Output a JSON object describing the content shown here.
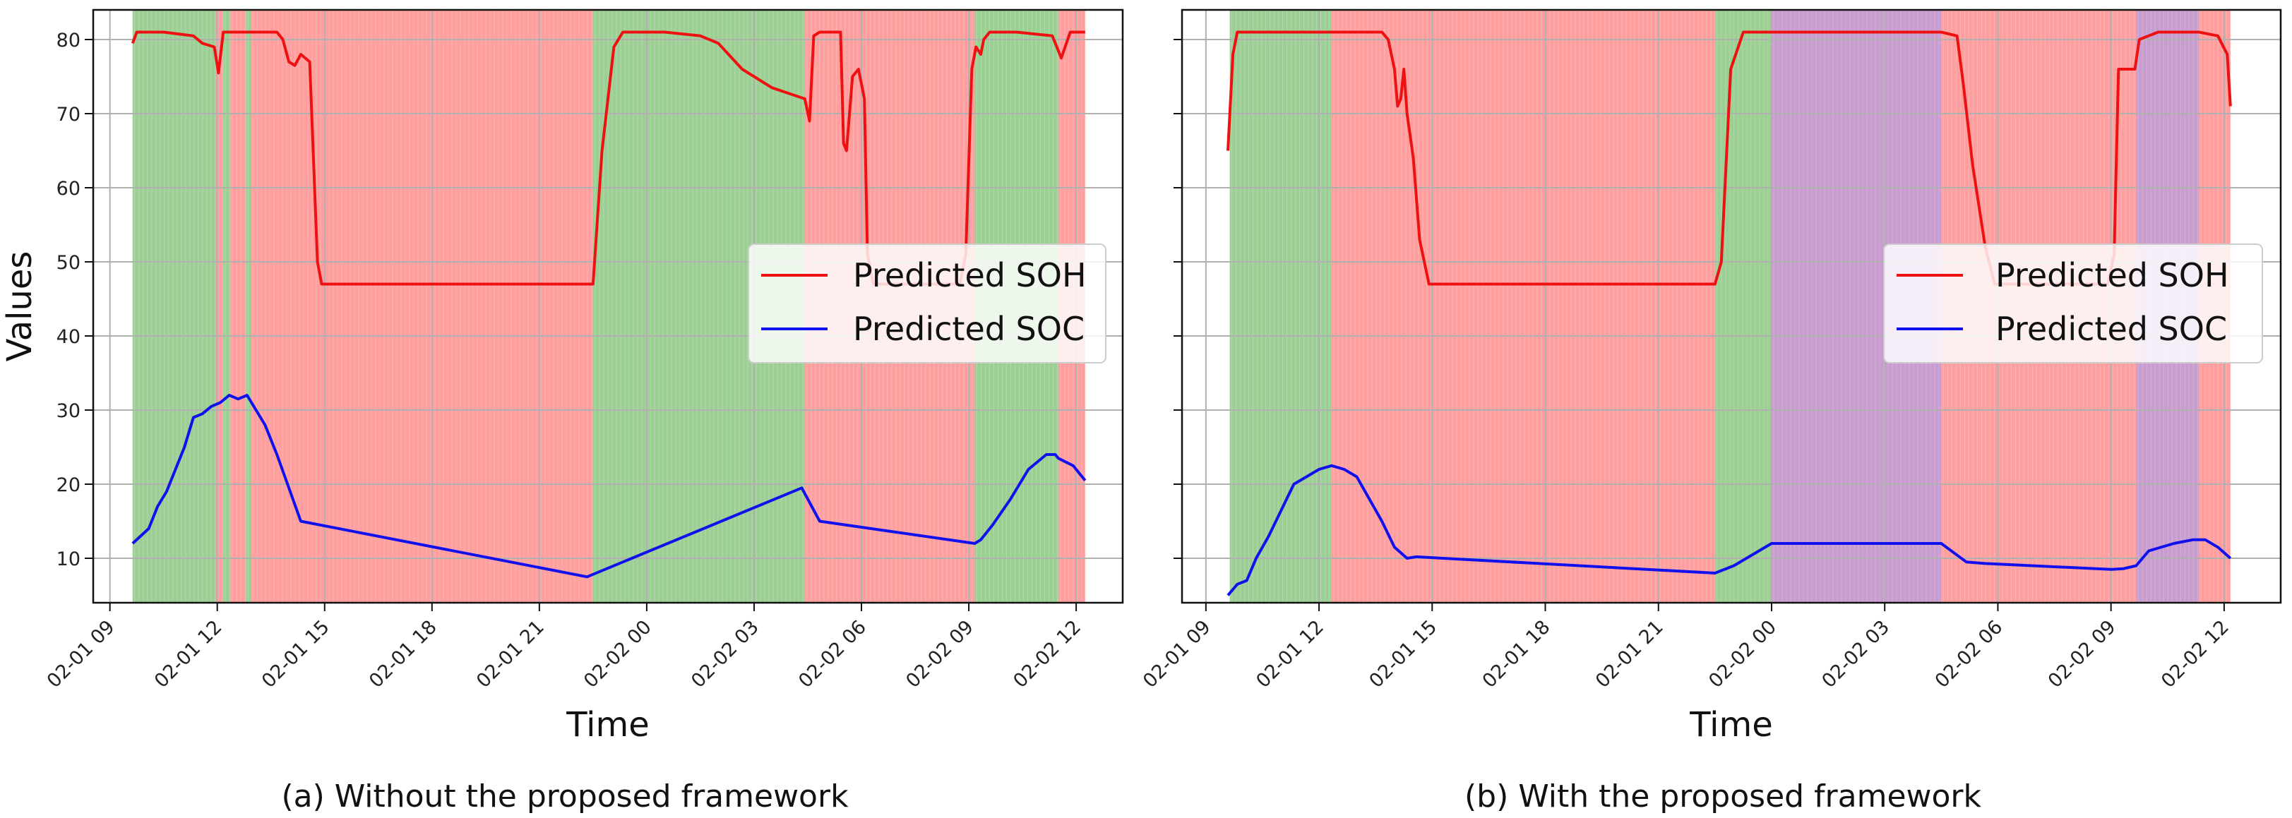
{
  "figure": {
    "captions": [
      "(a) Without the proposed framework",
      "(b) With the proposed framework"
    ]
  },
  "region_colors": {
    "green": "#9ccf93",
    "red": "#ff9e9e",
    "purple": "#c99ccf"
  },
  "chart_data": [
    {
      "type": "line",
      "title": "",
      "xlabel": "Time",
      "ylabel": "Values",
      "xlim": [
        "2023-02-01 08:32",
        "2023-02-02 13:18"
      ],
      "ylim": [
        4,
        84
      ],
      "yticks": [
        10,
        20,
        30,
        40,
        50,
        60,
        70,
        80
      ],
      "xticks": [
        "2023-02-01 09:00",
        "2023-02-01 12:00",
        "2023-02-01 15:00",
        "2023-02-01 18:00",
        "2023-02-01 21:00",
        "2023-02-02 00:00",
        "2023-02-02 03:00",
        "2023-02-02 06:00",
        "2023-02-02 09:00",
        "2023-02-02 12:00"
      ],
      "xtick_labels": [
        "02-01 09",
        "02-01 12",
        "02-01 15",
        "02-01 18",
        "02-01 21",
        "02-02 00",
        "02-02 03",
        "02-02 06",
        "02-02 09",
        "02-02 12"
      ],
      "grid": true,
      "legend_position": "center-right",
      "background_regions": [
        {
          "start": "2023-02-01 09:38",
          "end": "2023-02-01 11:58",
          "color": "green"
        },
        {
          "start": "2023-02-01 11:58",
          "end": "2023-02-01 12:10",
          "color": "red"
        },
        {
          "start": "2023-02-01 12:10",
          "end": "2023-02-01 12:22",
          "color": "green"
        },
        {
          "start": "2023-02-01 12:22",
          "end": "2023-02-01 12:48",
          "color": "red"
        },
        {
          "start": "2023-02-01 12:48",
          "end": "2023-02-01 12:56",
          "color": "green"
        },
        {
          "start": "2023-02-01 12:56",
          "end": "2023-02-01 22:30",
          "color": "red"
        },
        {
          "start": "2023-02-01 22:30",
          "end": "2023-02-02 04:25",
          "color": "green"
        },
        {
          "start": "2023-02-02 04:25",
          "end": "2023-02-02 09:10",
          "color": "red"
        },
        {
          "start": "2023-02-02 09:10",
          "end": "2023-02-02 11:30",
          "color": "green"
        },
        {
          "start": "2023-02-02 11:30",
          "end": "2023-02-02 12:15",
          "color": "red"
        }
      ],
      "series": [
        {
          "name": "Predicted SOH",
          "color": "#ee1111",
          "x": [
            "2023-02-01 09:38",
            "2023-02-01 09:45",
            "2023-02-01 10:30",
            "2023-02-01 11:20",
            "2023-02-01 11:35",
            "2023-02-01 11:55",
            "2023-02-01 12:02",
            "2023-02-01 12:10",
            "2023-02-01 12:20",
            "2023-02-01 13:40",
            "2023-02-01 13:50",
            "2023-02-01 14:00",
            "2023-02-01 14:10",
            "2023-02-01 14:20",
            "2023-02-01 14:35",
            "2023-02-01 14:48",
            "2023-02-01 14:55",
            "2023-02-01 15:03",
            "2023-02-01 15:12",
            "2023-02-01 22:20",
            "2023-02-01 22:30",
            "2023-02-01 22:45",
            "2023-02-01 23:05",
            "2023-02-01 23:20",
            "2023-02-02 00:30",
            "2023-02-02 01:30",
            "2023-02-02 02:00",
            "2023-02-02 02:40",
            "2023-02-02 03:30",
            "2023-02-02 04:25",
            "2023-02-02 04:33",
            "2023-02-02 04:40",
            "2023-02-02 04:50",
            "2023-02-02 05:25",
            "2023-02-02 05:30",
            "2023-02-02 05:35",
            "2023-02-02 05:45",
            "2023-02-02 05:55",
            "2023-02-02 06:05",
            "2023-02-02 06:10",
            "2023-02-02 06:20",
            "2023-02-02 08:45",
            "2023-02-02 08:55",
            "2023-02-02 09:05",
            "2023-02-02 09:12",
            "2023-02-02 09:20",
            "2023-02-02 09:25",
            "2023-02-02 09:35",
            "2023-02-02 09:50",
            "2023-02-02 10:20",
            "2023-02-02 11:20",
            "2023-02-02 11:35",
            "2023-02-02 11:50",
            "2023-02-02 12:15"
          ],
          "y": [
            79.5,
            81,
            81,
            80.5,
            79.5,
            79,
            75.5,
            81,
            81,
            81,
            80,
            77,
            76.5,
            78,
            77,
            50,
            47,
            47,
            47,
            47,
            47,
            65,
            79,
            81,
            81,
            80.5,
            79.5,
            76,
            73.5,
            72,
            69,
            80.5,
            81,
            81,
            66,
            65,
            75,
            76,
            72,
            51,
            47,
            47,
            51,
            76,
            79,
            78,
            80,
            81,
            81,
            81,
            80.5,
            77.5,
            81,
            81
          ]
        },
        {
          "name": "Predicted SOC",
          "color": "#1111ee",
          "x": [
            "2023-02-01 09:38",
            "2023-02-01 10:05",
            "2023-02-01 10:20",
            "2023-02-01 10:35",
            "2023-02-01 11:05",
            "2023-02-01 11:20",
            "2023-02-01 11:35",
            "2023-02-01 11:50",
            "2023-02-01 12:05",
            "2023-02-01 12:20",
            "2023-02-01 12:35",
            "2023-02-01 12:50",
            "2023-02-01 13:05",
            "2023-02-01 13:20",
            "2023-02-01 13:40",
            "2023-02-01 14:20",
            "2023-02-01 22:20",
            "2023-02-02 04:20",
            "2023-02-02 04:50",
            "2023-02-02 09:10",
            "2023-02-02 09:20",
            "2023-02-02 09:40",
            "2023-02-02 10:10",
            "2023-02-02 10:40",
            "2023-02-02 11:10",
            "2023-02-02 11:25",
            "2023-02-02 11:30",
            "2023-02-02 11:55",
            "2023-02-02 12:15"
          ],
          "y": [
            12,
            14,
            17,
            19,
            25,
            29,
            29.5,
            30.5,
            31,
            32,
            31.5,
            32,
            30,
            28,
            24,
            15,
            7.5,
            19.5,
            15,
            12,
            12.5,
            14.5,
            18,
            22,
            24,
            24,
            23.5,
            22.5,
            20.5
          ]
        }
      ]
    },
    {
      "type": "line",
      "title": "",
      "xlabel": "Time",
      "ylabel": "",
      "xlim": [
        "2023-02-01 08:22",
        "2023-02-02 13:30"
      ],
      "ylim": [
        4,
        84
      ],
      "yticks": [
        10,
        20,
        30,
        40,
        50,
        60,
        70,
        80
      ],
      "xticks": [
        "2023-02-01 09:00",
        "2023-02-01 12:00",
        "2023-02-01 15:00",
        "2023-02-01 18:00",
        "2023-02-01 21:00",
        "2023-02-02 00:00",
        "2023-02-02 03:00",
        "2023-02-02 06:00",
        "2023-02-02 09:00",
        "2023-02-02 12:00"
      ],
      "xtick_labels": [
        "02-01 09",
        "02-01 12",
        "02-01 15",
        "02-01 18",
        "02-01 21",
        "02-02 00",
        "02-02 03",
        "02-02 06",
        "02-02 09",
        "02-02 12"
      ],
      "grid": true,
      "legend_position": "center-right",
      "background_regions": [
        {
          "start": "2023-02-01 09:38",
          "end": "2023-02-01 12:20",
          "color": "green"
        },
        {
          "start": "2023-02-01 12:20",
          "end": "2023-02-01 22:30",
          "color": "red"
        },
        {
          "start": "2023-02-01 22:30",
          "end": "2023-02-02 00:00",
          "color": "green"
        },
        {
          "start": "2023-02-02 00:00",
          "end": "2023-02-02 04:30",
          "color": "purple"
        },
        {
          "start": "2023-02-02 04:30",
          "end": "2023-02-02 09:40",
          "color": "red"
        },
        {
          "start": "2023-02-02 09:40",
          "end": "2023-02-02 11:20",
          "color": "purple"
        },
        {
          "start": "2023-02-02 11:20",
          "end": "2023-02-02 12:10",
          "color": "red"
        }
      ],
      "series": [
        {
          "name": "Predicted SOH",
          "color": "#ee1111",
          "x": [
            "2023-02-01 09:35",
            "2023-02-01 09:43",
            "2023-02-01 09:50",
            "2023-02-01 10:10",
            "2023-02-01 13:40",
            "2023-02-01 13:50",
            "2023-02-01 14:00",
            "2023-02-01 14:05",
            "2023-02-01 14:10",
            "2023-02-01 14:15",
            "2023-02-01 14:20",
            "2023-02-01 14:30",
            "2023-02-01 14:40",
            "2023-02-01 14:55",
            "2023-02-01 15:05",
            "2023-02-01 22:30",
            "2023-02-01 22:40",
            "2023-02-01 22:55",
            "2023-02-01 23:15",
            "2023-02-02 04:30",
            "2023-02-02 04:55",
            "2023-02-02 05:05",
            "2023-02-02 05:20",
            "2023-02-02 05:40",
            "2023-02-02 05:55",
            "2023-02-02 08:55",
            "2023-02-02 09:05",
            "2023-02-02 09:12",
            "2023-02-02 09:30",
            "2023-02-02 09:38",
            "2023-02-02 09:45",
            "2023-02-02 10:15",
            "2023-02-02 10:55",
            "2023-02-02 11:20",
            "2023-02-02 11:50",
            "2023-02-02 12:05",
            "2023-02-02 12:10"
          ],
          "y": [
            65,
            78,
            81,
            81,
            81,
            80,
            76,
            71,
            72,
            76,
            70,
            64,
            53,
            47,
            47,
            47,
            50,
            76,
            81,
            81,
            80.5,
            74,
            63,
            52,
            47,
            47,
            51,
            76,
            76,
            76,
            80,
            81,
            81,
            81,
            80.5,
            78,
            71
          ]
        },
        {
          "name": "Predicted SOC",
          "color": "#1111ee",
          "x": [
            "2023-02-01 09:35",
            "2023-02-01 09:50",
            "2023-02-01 10:05",
            "2023-02-01 10:20",
            "2023-02-01 10:40",
            "2023-02-01 11:00",
            "2023-02-01 11:20",
            "2023-02-01 11:40",
            "2023-02-01 12:00",
            "2023-02-01 12:20",
            "2023-02-01 12:40",
            "2023-02-01 13:00",
            "2023-02-01 13:20",
            "2023-02-01 13:40",
            "2023-02-01 14:00",
            "2023-02-01 14:20",
            "2023-02-01 14:35",
            "2023-02-01 22:30",
            "2023-02-01 23:00",
            "2023-02-02 00:00",
            "2023-02-02 04:30",
            "2023-02-02 05:10",
            "2023-02-02 05:40",
            "2023-02-02 09:00",
            "2023-02-02 09:20",
            "2023-02-02 09:40",
            "2023-02-02 10:00",
            "2023-02-02 10:40",
            "2023-02-02 11:10",
            "2023-02-02 11:30",
            "2023-02-02 11:50",
            "2023-02-02 12:10"
          ],
          "y": [
            5,
            6.5,
            7,
            10,
            13,
            16.5,
            20,
            21,
            22,
            22.5,
            22,
            21,
            18,
            15,
            11.5,
            10,
            10.2,
            8,
            9,
            12,
            12,
            9.5,
            9.3,
            8.5,
            8.6,
            9,
            11,
            12,
            12.5,
            12.5,
            11.5,
            10
          ]
        }
      ]
    }
  ]
}
